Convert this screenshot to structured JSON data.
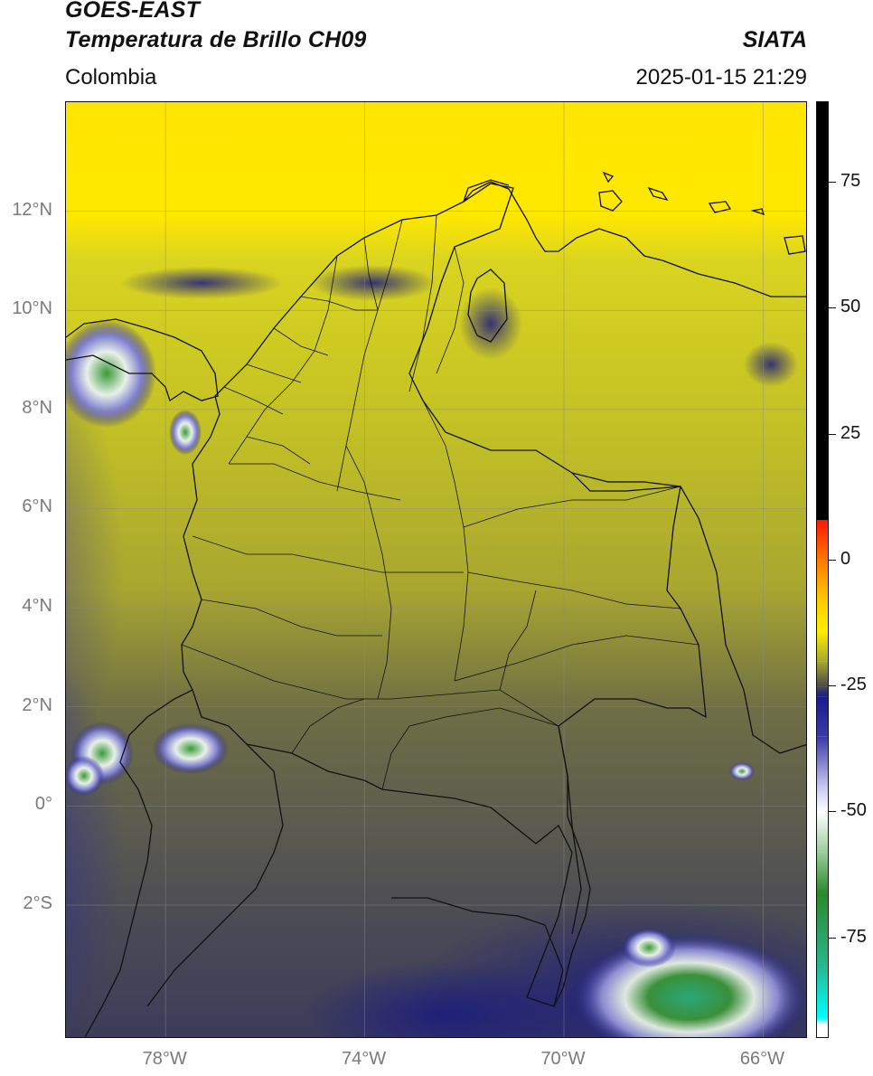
{
  "header": {
    "satellite": "GOES-EAST",
    "product": "Temperatura de Brillo CH09",
    "brand": "SIATA",
    "region": "Colombia",
    "timestamp": "2025-01-15 21:29"
  },
  "map": {
    "lon_range": [
      -80,
      -65.1
    ],
    "lat_range": [
      -4.7,
      14.2
    ],
    "lat_ticks": [
      {
        "value": 12,
        "label": "12°N"
      },
      {
        "value": 10,
        "label": "10°N"
      },
      {
        "value": 8,
        "label": "8°N"
      },
      {
        "value": 6,
        "label": "6°N"
      },
      {
        "value": 4,
        "label": "4°N"
      },
      {
        "value": 2,
        "label": "2°N"
      },
      {
        "value": 0,
        "label": "0°"
      },
      {
        "value": -2,
        "label": "2°S"
      }
    ],
    "lon_ticks": [
      {
        "value": -78,
        "label": "78°W"
      },
      {
        "value": -74,
        "label": "74°W"
      },
      {
        "value": -70,
        "label": "70°W"
      },
      {
        "value": -66,
        "label": "66°W"
      }
    ],
    "gridlines": true
  },
  "colorbar": {
    "range": [
      -95,
      91
    ],
    "ticks": [
      {
        "value": 75,
        "label": "75"
      },
      {
        "value": 50,
        "label": "50"
      },
      {
        "value": 25,
        "label": "25"
      },
      {
        "value": 0,
        "label": "0"
      },
      {
        "value": -25,
        "label": "-25"
      },
      {
        "value": -50,
        "label": "-50"
      },
      {
        "value": -75,
        "label": "-75"
      }
    ],
    "stops": [
      {
        "value": 91,
        "color": "#000000"
      },
      {
        "value": 8,
        "color": "#000000"
      },
      {
        "value": 7.9,
        "color": "#ff1a00"
      },
      {
        "value": 0,
        "color": "#ff7a00"
      },
      {
        "value": -8,
        "color": "#ffcc00"
      },
      {
        "value": -14,
        "color": "#ffee00"
      },
      {
        "value": -20,
        "color": "#a8a830"
      },
      {
        "value": -25,
        "color": "#4a4a4a"
      },
      {
        "value": -27,
        "color": "#1a1a8c"
      },
      {
        "value": -35,
        "color": "#3a3aa8"
      },
      {
        "value": -45,
        "color": "#c8c8f0"
      },
      {
        "value": -50,
        "color": "#ffffff"
      },
      {
        "value": -58,
        "color": "#9acc9a"
      },
      {
        "value": -66,
        "color": "#2a8a2a"
      },
      {
        "value": -80,
        "color": "#2ab48a"
      },
      {
        "value": -91,
        "color": "#00ffff"
      },
      {
        "value": -92,
        "color": "#ffffff"
      },
      {
        "value": -95,
        "color": "#ffffff"
      }
    ]
  }
}
